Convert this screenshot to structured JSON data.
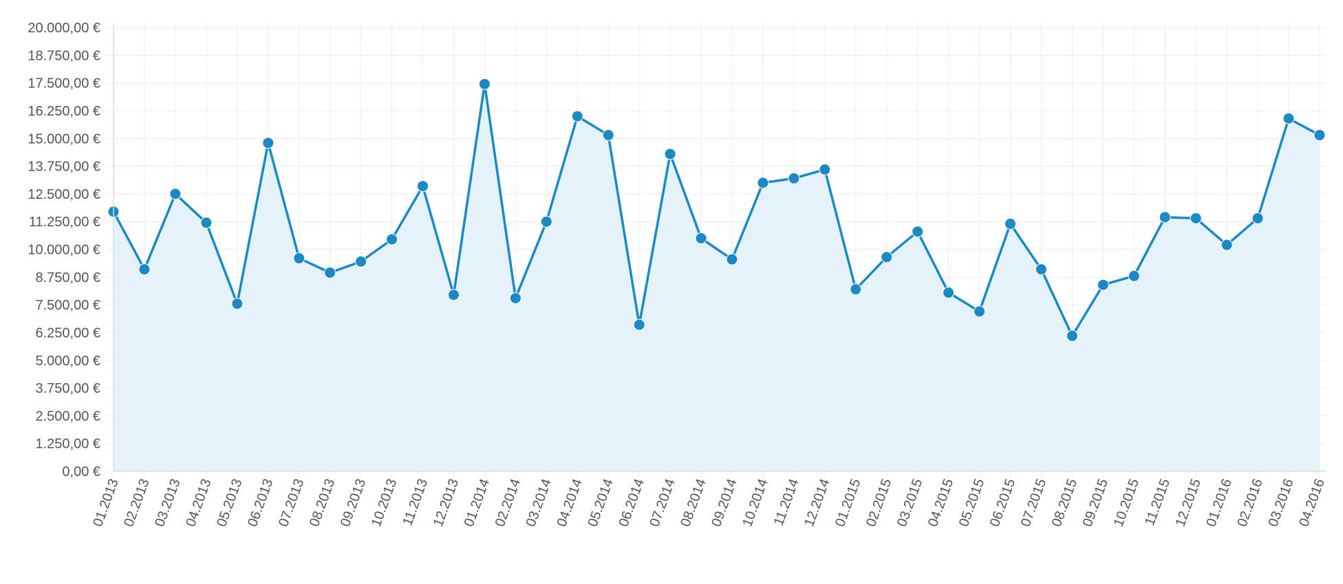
{
  "chart_data": {
    "type": "area",
    "title": "",
    "xlabel": "",
    "ylabel": "",
    "categories": [
      "01.2013",
      "02.2013",
      "03.2013",
      "04.2013",
      "05.2013",
      "06.2013",
      "07.2013",
      "08.2013",
      "09.2013",
      "10.2013",
      "11.2013",
      "12.2013",
      "01.2014",
      "02.2014",
      "03.2014",
      "04.2014",
      "05.2014",
      "06.2014",
      "07.2014",
      "08.2014",
      "09.2014",
      "10.2014",
      "11.2014",
      "12.2014",
      "01.2015",
      "02.2015",
      "03.2015",
      "04.2015",
      "05.2015",
      "06.2015",
      "07.2015",
      "08.2015",
      "09.2015",
      "10.2015",
      "11.2015",
      "12.2015",
      "01.2016",
      "02.2016",
      "03.2016",
      "04.2016"
    ],
    "series": [
      {
        "values": [
          11700,
          9100,
          12500,
          11200,
          7550,
          14800,
          9600,
          8950,
          9450,
          10450,
          12850,
          7950,
          17450,
          7800,
          11250,
          16000,
          15150,
          6600,
          14300,
          10500,
          9550,
          13000,
          13200,
          13600,
          8200,
          9650,
          10800,
          8050,
          7200,
          11150,
          9100,
          6100,
          8400,
          8800,
          11450,
          11400,
          10200,
          11400,
          15900,
          15150
        ]
      }
    ],
    "ylim": [
      0,
      20000
    ],
    "y_ticks": [
      0,
      1250,
      2500,
      3750,
      5000,
      6250,
      7500,
      8750,
      10000,
      11250,
      12500,
      13750,
      15000,
      16250,
      17500,
      18750,
      20000
    ],
    "y_tick_labels": [
      "0,00 €",
      "1.250,00 €",
      "2.500,00 €",
      "3.750,00 €",
      "5.000,00 €",
      "6.250,00 €",
      "7.500,00 €",
      "8.750,00 €",
      "10.000,00 €",
      "11.250,00 €",
      "12.500,00 €",
      "13.750,00 €",
      "15.000,00 €",
      "16.250,00 €",
      "17.500,00 €",
      "18.750,00 €",
      "20.000,00 €"
    ],
    "grid": true,
    "legend": "none",
    "colors": {
      "line": "#1a8ac6",
      "point": "#1a8ac6",
      "fill": "#e4f2f9",
      "grid": "#ececec",
      "axis": "#dcdcdc",
      "label": "#555555"
    }
  }
}
